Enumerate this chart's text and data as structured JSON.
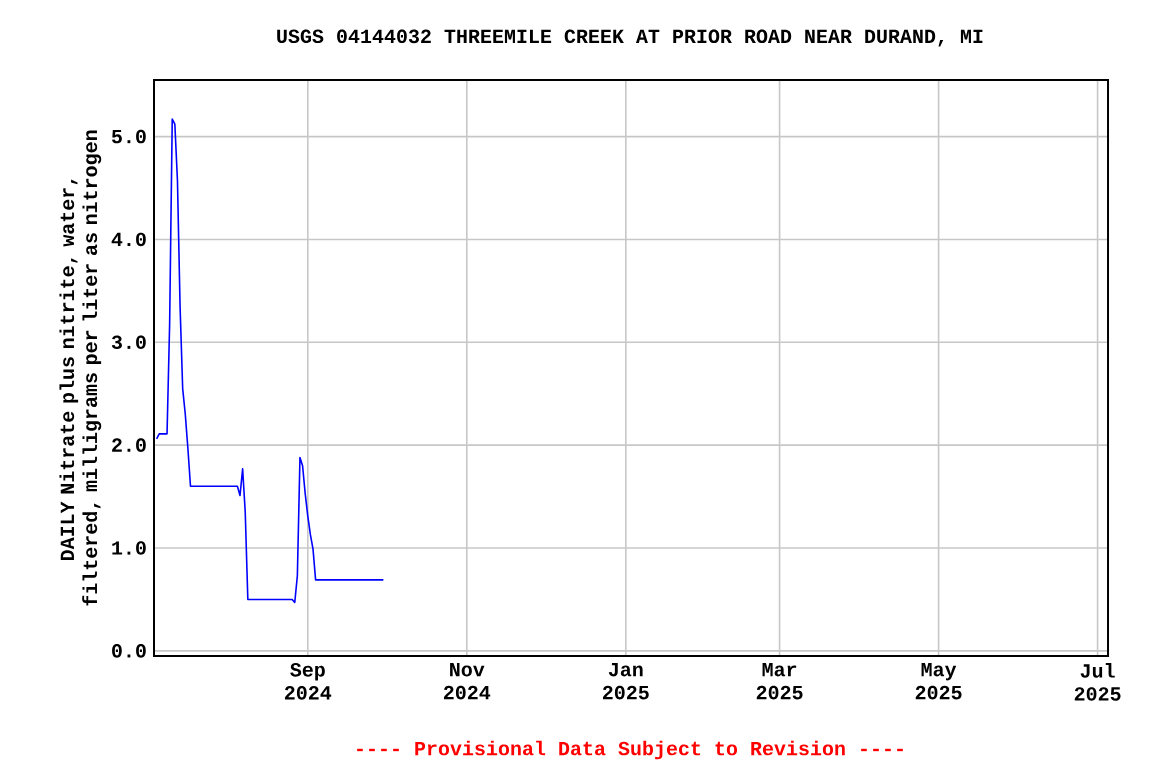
{
  "chart_data": {
    "type": "line",
    "title": "USGS 04144032 THREEMILE CREEK AT PRIOR ROAD NEAR DURAND, MI",
    "ylabel": "DAILY Nitrate plus nitrite, water, filtered, milligrams per liter as nitrogen",
    "annotations": [
      "---- Provisional Data Subject to Revision ----"
    ],
    "x": [
      "2024-07-05",
      "2024-07-06",
      "2024-07-09",
      "2024-07-10",
      "2024-07-11",
      "2024-07-12",
      "2024-07-13",
      "2024-07-14",
      "2024-07-15",
      "2024-07-16",
      "2024-07-17",
      "2024-07-18",
      "2024-08-05",
      "2024-08-06",
      "2024-08-07",
      "2024-08-08",
      "2024-08-09",
      "2024-08-26",
      "2024-08-27",
      "2024-08-28",
      "2024-08-29",
      "2024-08-30",
      "2024-08-31",
      "2024-09-01",
      "2024-09-02",
      "2024-09-03",
      "2024-09-04",
      "2024-09-30"
    ],
    "series": [
      {
        "color": "#0000ff",
        "values": [
          2.06,
          2.11,
          2.11,
          3.18,
          5.17,
          5.12,
          4.57,
          3.35,
          2.55,
          2.3,
          1.97,
          1.6,
          1.6,
          1.51,
          1.77,
          1.35,
          0.5,
          0.5,
          0.47,
          0.73,
          1.88,
          1.8,
          1.53,
          1.31,
          1.13,
          0.99,
          0.69,
          0.69
        ]
      }
    ],
    "xlim": [
      "2024-07-04",
      "2025-07-05"
    ],
    "xticks": [
      {
        "value": "2024-09-01",
        "label": "Sep 2024"
      },
      {
        "value": "2024-11-01",
        "label": "Nov 2024"
      },
      {
        "value": "2025-01-01",
        "label": "Jan 2025"
      },
      {
        "value": "2025-03-01",
        "label": "Mar 2025"
      },
      {
        "value": "2025-05-01",
        "label": "May 2025"
      },
      {
        "value": "2025-07-01",
        "label": "Jul 2025"
      }
    ],
    "ylim": [
      -0.05,
      5.55
    ],
    "yticks": [
      {
        "value": 0,
        "label": "0.0"
      },
      {
        "value": 1,
        "label": "1.0"
      },
      {
        "value": 2,
        "label": "2.0"
      },
      {
        "value": 3,
        "label": "3.0"
      },
      {
        "value": 4,
        "label": "4.0"
      },
      {
        "value": 5,
        "label": "5.0"
      }
    ],
    "grid": true,
    "marker": "none",
    "line_style": "solid"
  }
}
